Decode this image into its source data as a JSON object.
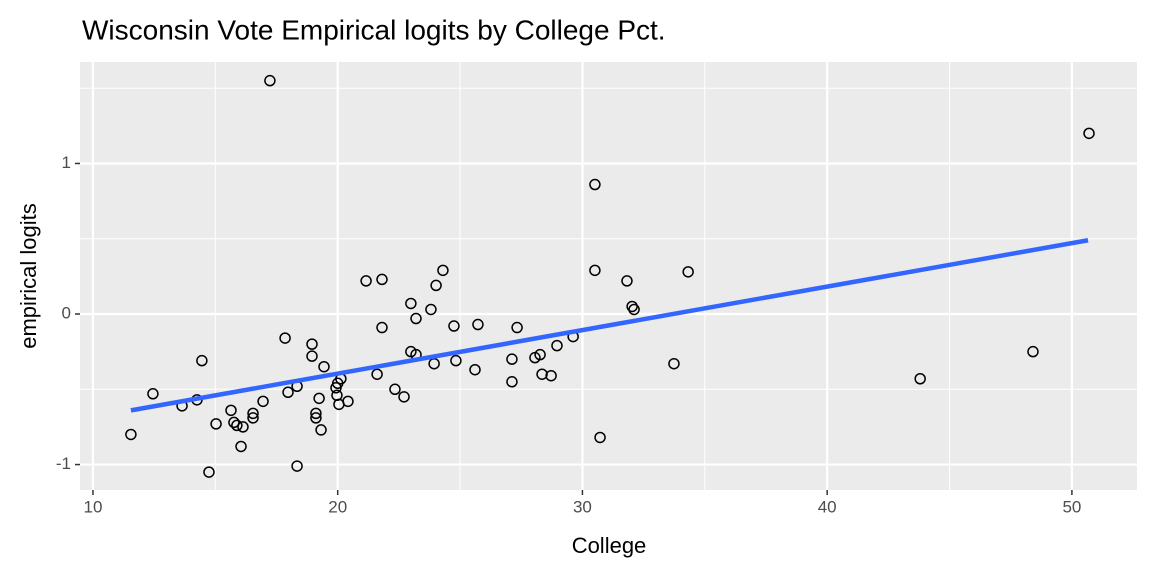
{
  "chart_data": {
    "type": "scatter",
    "title": "Wisconsin Vote Empirical logits by College Pct.",
    "xlabel": "College",
    "ylabel": "empirical logits",
    "x": [
      11.55,
      12.45,
      13.64,
      14.25,
      14.45,
      14.74,
      15.03,
      15.64,
      15.76,
      15.88,
      16.05,
      16.13,
      16.54,
      16.54,
      16.95,
      17.23,
      17.85,
      17.97,
      18.34,
      18.34,
      18.95,
      18.95,
      19.11,
      19.11,
      19.24,
      19.32,
      19.44,
      19.93,
      19.97,
      20.0,
      20.05,
      20.13,
      20.42,
      21.16,
      21.61,
      21.81,
      21.81,
      22.34,
      22.71,
      22.99,
      22.99,
      23.2,
      23.2,
      23.81,
      23.94,
      24.02,
      24.3,
      24.75,
      24.83,
      25.61,
      25.73,
      27.12,
      27.12,
      27.33,
      28.06,
      28.27,
      28.35,
      28.72,
      28.96,
      29.62,
      30.51,
      30.51,
      30.72,
      31.82,
      32.03,
      32.11,
      33.74,
      34.32,
      43.8,
      48.41,
      50.7
    ],
    "values": [
      -0.8,
      -0.53,
      -0.61,
      -0.57,
      -0.31,
      -1.05,
      -0.73,
      -0.64,
      -0.72,
      -0.74,
      -0.88,
      -0.75,
      -0.66,
      -0.69,
      -0.58,
      1.55,
      -0.16,
      -0.52,
      -0.48,
      -1.01,
      -0.2,
      -0.28,
      -0.66,
      -0.69,
      -0.56,
      -0.77,
      -0.35,
      -0.49,
      -0.54,
      -0.46,
      -0.6,
      -0.43,
      -0.58,
      0.22,
      -0.4,
      0.23,
      -0.09,
      -0.5,
      -0.55,
      0.07,
      -0.25,
      -0.03,
      -0.27,
      0.03,
      -0.33,
      0.19,
      0.29,
      -0.08,
      -0.31,
      -0.37,
      -0.07,
      -0.3,
      -0.45,
      -0.09,
      -0.29,
      -0.27,
      -0.4,
      -0.41,
      -0.21,
      -0.15,
      0.86,
      0.29,
      -0.82,
      0.22,
      0.05,
      0.03,
      -0.33,
      0.28,
      -0.43,
      -0.25,
      1.2
    ],
    "point_color": "#000000",
    "trend": {
      "x": [
        11.55,
        50.66
      ],
      "values": [
        -0.64,
        0.49
      ],
      "color": "#3366ff"
    },
    "xlim": [
      9.47,
      52.66
    ],
    "ylim": [
      -1.169,
      1.674
    ],
    "xticks": [
      10,
      20,
      30,
      40,
      50
    ],
    "yticks": [
      -1,
      0,
      1
    ],
    "minor_xticks": [
      15,
      25,
      35,
      45
    ],
    "minor_yticks": [
      -0.5,
      0.5,
      1.5
    ],
    "grid": true
  }
}
